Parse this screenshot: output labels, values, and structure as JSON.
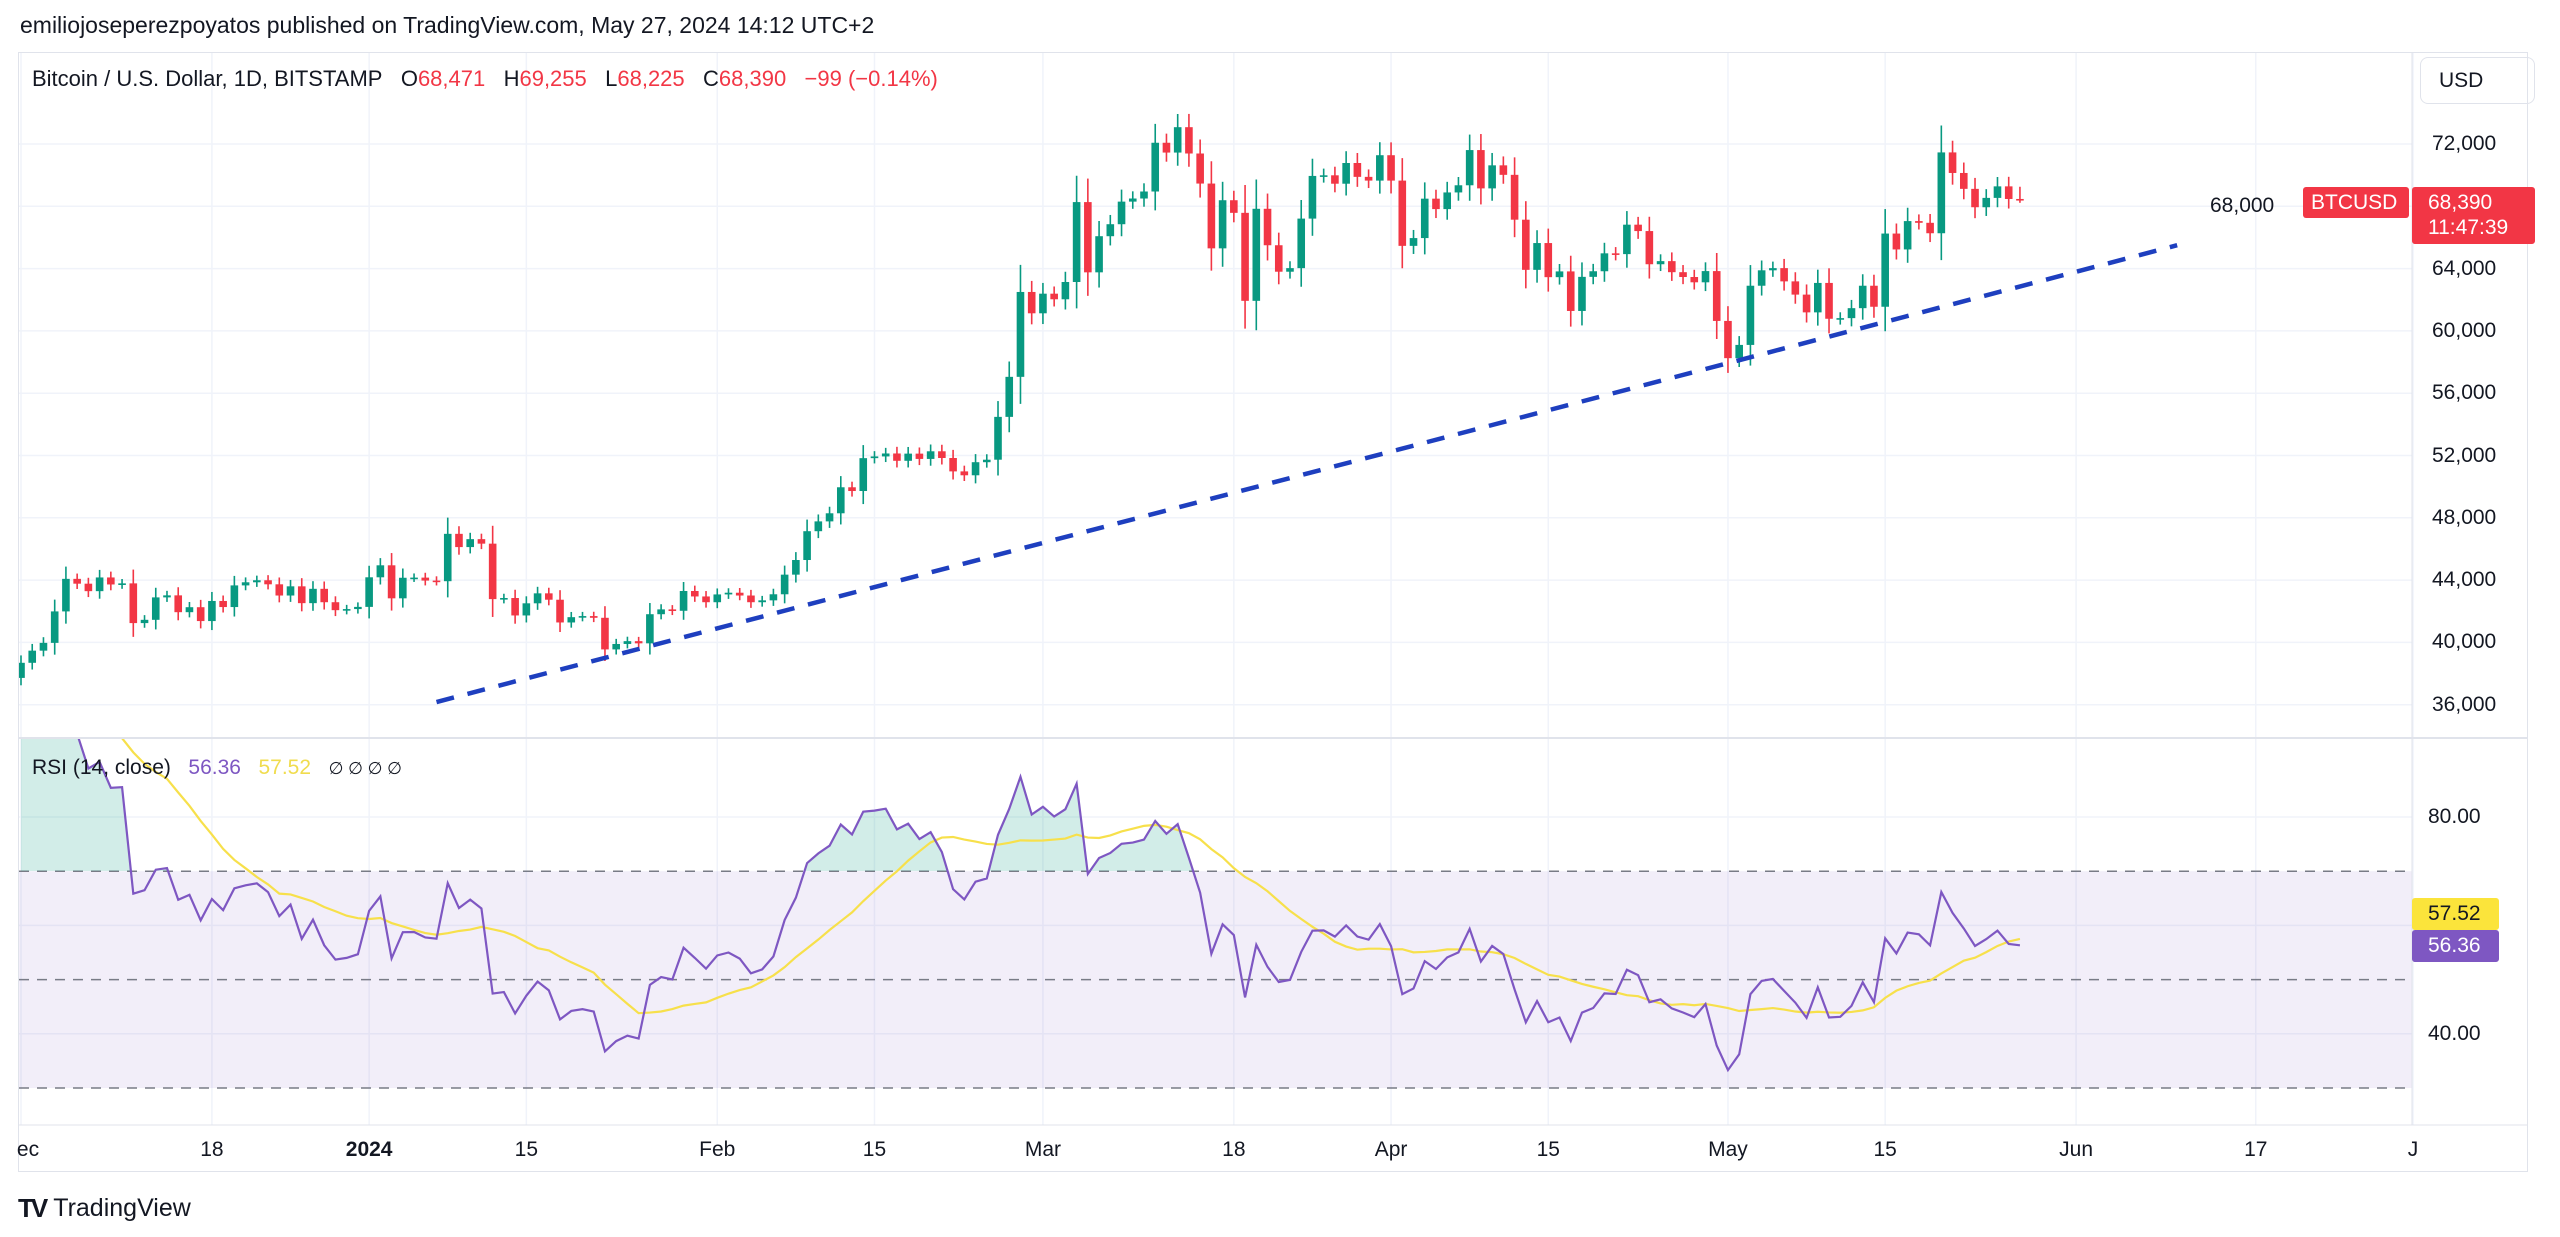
{
  "published": "emiliojoseperezpoyatos published on TradingView.com, May 27, 2024 14:12 UTC+2",
  "legend": {
    "symbol": "Bitcoin / U.S. Dollar, 1D, BITSTAMP",
    "o_label": "O",
    "o": "68,471",
    "h_label": "H",
    "h": "69,255",
    "l_label": "L",
    "l": "68,225",
    "c_label": "C",
    "c": "68,390",
    "change": "−99 (−0.14%)"
  },
  "rsi_legend": {
    "title": "RSI (14, close)",
    "rsi": "56.36",
    "ma": "57.52",
    "extras": "∅  ∅  ∅  ∅"
  },
  "currency_button": "USD",
  "tags": {
    "symbol": "BTCUSD",
    "price": "68,390",
    "countdown": "11:47:39",
    "ma": "57.52",
    "rsi": "56.36"
  },
  "price_axis": [
    "72,000",
    "68,000",
    "64,000",
    "60,000",
    "56,000",
    "52,000",
    "48,000",
    "44,000",
    "40,000",
    "36,000"
  ],
  "rsi_axis": [
    "80.00",
    "40.00"
  ],
  "time_axis": [
    {
      "label": "ec",
      "day": 0
    },
    {
      "label": "18",
      "day": 17
    },
    {
      "label": "2024",
      "day": 31,
      "bold": true
    },
    {
      "label": "15",
      "day": 45
    },
    {
      "label": "Feb",
      "day": 62
    },
    {
      "label": "15",
      "day": 76
    },
    {
      "label": "Mar",
      "day": 91
    },
    {
      "label": "18",
      "day": 108
    },
    {
      "label": "Apr",
      "day": 122
    },
    {
      "label": "15",
      "day": 136
    },
    {
      "label": "May",
      "day": 152
    },
    {
      "label": "15",
      "day": 166
    },
    {
      "label": "Jun",
      "day": 183
    },
    {
      "label": "17",
      "day": 199
    },
    {
      "label": "J",
      "day": 213
    }
  ],
  "brand": "TradingView",
  "colors": {
    "up": "#089981",
    "down": "#f23645",
    "rsi": "#7e57c2",
    "rsi_ma": "#f7e04b",
    "trendline": "#1e3fbf",
    "band": "#7e57c2"
  },
  "chart_data": {
    "type": "candlestick",
    "title": "Bitcoin / U.S. Dollar, 1D, BITSTAMP",
    "start_date": "2023-12-01",
    "first_open": 37720,
    "last_candle": {
      "open": 68471,
      "high": 69255,
      "low": 68225,
      "close": 68390
    },
    "closes": [
      38690,
      39470,
      39970,
      41990,
      44080,
      43770,
      43290,
      44170,
      43720,
      43790,
      41240,
      41450,
      42890,
      43020,
      41940,
      42260,
      41370,
      42660,
      42270,
      43660,
      43860,
      43990,
      43730,
      43010,
      43600,
      42520,
      43440,
      42580,
      42070,
      42140,
      42280,
      44180,
      44950,
      42830,
      44150,
      44160,
      43970,
      43930,
      46970,
      46120,
      46630,
      46340,
      42780,
      42850,
      41730,
      42510,
      43150,
      42740,
      41280,
      41620,
      41690,
      41580,
      39550,
      39900,
      40080,
      39940,
      41810,
      42120,
      42030,
      43300,
      42950,
      42580,
      43080,
      43190,
      43010,
      42580,
      42700,
      43090,
      44350,
      45290,
      47140,
      47770,
      48290,
      49960,
      49720,
      51830,
      51940,
      52130,
      51660,
      52120,
      51780,
      52270,
      51840,
      50980,
      50730,
      51570,
      51730,
      54480,
      57050,
      62500,
      61130,
      62390,
      62030,
      63140,
      68270,
      63760,
      66080,
      66850,
      68300,
      68500,
      68950,
      72080,
      71450,
      73080,
      71390,
      69460,
      65300,
      68390,
      67580,
      61930,
      67840,
      65500,
      63800,
      64030,
      67210,
      69950,
      69990,
      69450,
      70780,
      69890,
      69650,
      71280,
      69650,
      65460,
      65960,
      68490,
      67820,
      68890,
      69350,
      71610,
      69150,
      70630,
      70020,
      67140,
      63920,
      65640,
      63450,
      63820,
      61280,
      63470,
      63830,
      64980,
      64930,
      66820,
      66410,
      64280,
      64480,
      63770,
      63460,
      63120,
      63840,
      60640,
      58250,
      59100,
      62900,
      63890,
      64030,
      63180,
      62330,
      61190,
      63080,
      60780,
      60820,
      61460,
      62900,
      61550,
      66250,
      65230,
      67050,
      66940,
      66270,
      71460,
      70140,
      69120,
      67940,
      68540,
      69280,
      68470,
      68390
    ],
    "trendline": {
      "from": {
        "day": 37,
        "price": 36170
      },
      "to": {
        "day": 192,
        "price": 65500
      },
      "style": "dashed"
    },
    "price_range": [
      34000,
      74000
    ],
    "rsi": {
      "length": 14,
      "ma_length": 14,
      "upper_band": 70,
      "middle_band": 50,
      "lower_band": 30,
      "range": [
        25,
        90
      ],
      "last_rsi": 56.36,
      "last_ma": 57.52
    }
  }
}
